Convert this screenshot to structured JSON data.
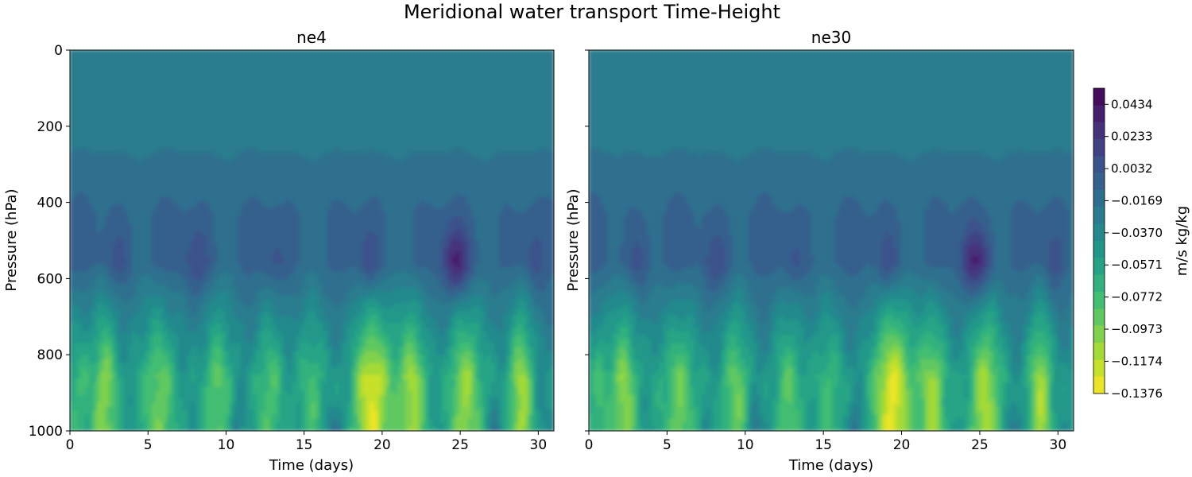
{
  "figure_title": "Meridional water transport Time-Height",
  "colors": {
    "colormap": "viridis_r",
    "low": "#fde725",
    "high": "#440154"
  },
  "chart_data": [
    {
      "type": "heatmap",
      "title": "ne4",
      "xlabel": "Time (days)",
      "ylabel": "Pressure (hPa)",
      "xlim": [
        0,
        31
      ],
      "ylim": [
        1000,
        0
      ],
      "y_inverted": true,
      "xticks": [
        "0",
        "5",
        "10",
        "15",
        "20",
        "25",
        "30"
      ],
      "yticks": [
        "0",
        "200",
        "400",
        "600",
        "800",
        "1000"
      ],
      "grid": false,
      "notable_extrema": [
        {
          "time": 24.8,
          "pressure": 580,
          "value": 0.04,
          "note": "strong positive transport maximum"
        },
        {
          "time": 19.3,
          "pressure": 900,
          "value": -0.13,
          "note": "strong negative transport minimum"
        }
      ]
    },
    {
      "type": "heatmap",
      "title": "ne30",
      "xlabel": "Time (days)",
      "ylabel": "Pressure (hPa)",
      "xlim": [
        0,
        31
      ],
      "ylim": [
        1000,
        0
      ],
      "y_inverted": true,
      "xticks": [
        "0",
        "5",
        "10",
        "15",
        "20",
        "25",
        "30"
      ],
      "yticks": [
        "0",
        "200",
        "400",
        "600",
        "800",
        "1000"
      ],
      "grid": false,
      "notable_extrema": [
        {
          "time": 24.8,
          "pressure": 580,
          "value": 0.035,
          "note": "strong positive transport maximum"
        },
        {
          "time": 19.5,
          "pressure": 890,
          "value": -0.12,
          "note": "strong negative transport minimum"
        }
      ]
    }
  ],
  "colorbar": {
    "label": "m/s kg/kg",
    "range": [
      -0.1376,
      0.0535
    ],
    "ticks": [
      "0.0434",
      "0.0233",
      "0.0032",
      "−0.0169",
      "−0.0370",
      "−0.0571",
      "−0.0772",
      "−0.0973",
      "−0.1174",
      "−0.1376"
    ]
  }
}
